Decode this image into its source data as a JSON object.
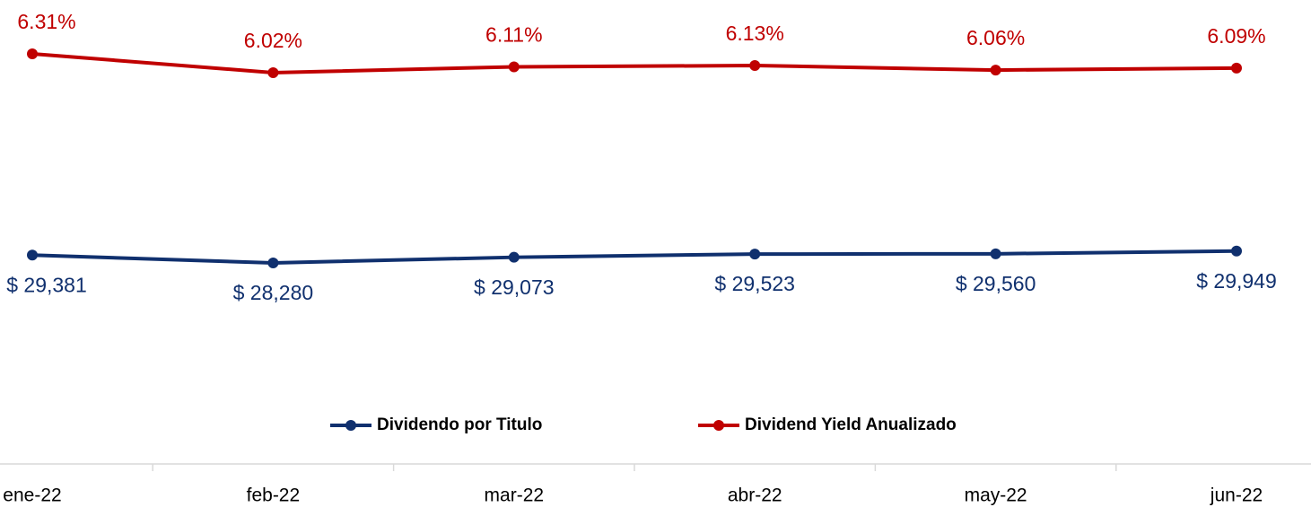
{
  "chart_data": {
    "type": "line",
    "categories": [
      "ene-22",
      "feb-22",
      "mar-22",
      "abr-22",
      "may-22",
      "jun-22"
    ],
    "series": [
      {
        "name": "Dividendo por Titulo",
        "color": "#10306e",
        "axis": "y",
        "values": [
          29381,
          28280,
          29073,
          29523,
          29560,
          29949
        ],
        "value_labels": [
          "$ 29,381",
          "$ 28,280",
          "$ 29,073",
          "$ 29,523",
          "$ 29,560",
          "$ 29,949"
        ]
      },
      {
        "name": "Dividend Yield Anualizado",
        "color": "#c00000",
        "axis": "y2",
        "values": [
          6.31,
          6.02,
          6.11,
          6.13,
          6.06,
          6.09
        ],
        "value_labels": [
          "6.31%",
          "6.02%",
          "6.11%",
          "6.13%",
          "6.06%",
          "6.09%"
        ]
      }
    ],
    "ylim": [
      0,
      64000
    ],
    "y2lim": [
      0,
      7
    ],
    "legend": "bottom"
  }
}
